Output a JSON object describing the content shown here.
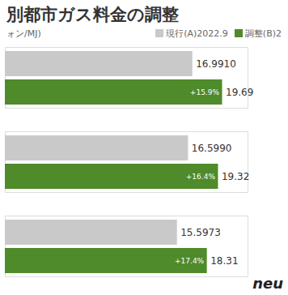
{
  "chart_data": {
    "type": "bar",
    "orientation": "horizontal",
    "title": "別都市ガス料金の調整",
    "subtitle": "ォン/MJ)",
    "source": "neu",
    "categories": [
      null,
      null,
      null
    ],
    "series": [
      {
        "name": "現行(A)2022.9",
        "color": "#c9c9c9",
        "values": [
          16.991,
          16.599,
          15.5973
        ],
        "value_labels": [
          "16.9910",
          "16.5990",
          "15.5973"
        ]
      },
      {
        "name": "調整(B)2",
        "color": "#4f8a2b",
        "values": [
          19.69,
          19.32,
          18.31
        ],
        "value_labels": [
          "19.69",
          "19.32",
          "18.31"
        ],
        "annotations": [
          "+15.9%",
          "+16.4%",
          "+17.4%"
        ]
      }
    ],
    "xlim": [
      0,
      22
    ],
    "xticks": [],
    "data_labels": true,
    "tick_labels": false,
    "grid": false,
    "legend": "top-right"
  }
}
